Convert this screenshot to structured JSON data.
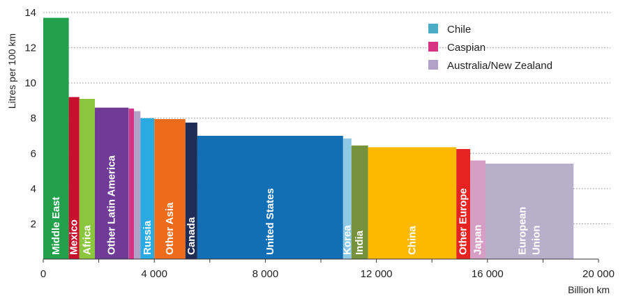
{
  "chart_data": {
    "type": "bar",
    "variable_width": true,
    "ylabel": "Litres per 100 km",
    "xlabel": "Billion km",
    "xlim": [
      0,
      20000
    ],
    "ylim": [
      0,
      14
    ],
    "x_ticks": [
      "0",
      "4 000",
      "8 000",
      "12 000",
      "16 000",
      "20 000"
    ],
    "y_ticks": [
      "2",
      "4",
      "6",
      "8",
      "10",
      "12",
      "14"
    ],
    "grid": "horizontal dotted",
    "legend_position": "top-right",
    "legend": [
      {
        "label": "Chile",
        "color": "#4bacc6"
      },
      {
        "label": "Caspian",
        "color": "#d63384"
      },
      {
        "label": "Australia/New Zealand",
        "color": "#b3a2c7"
      }
    ],
    "bars": [
      {
        "label": "Middle East",
        "x_start": 0,
        "x_end": 920,
        "value": 13.7,
        "color": "#22a04b",
        "text": [
          "Middle East"
        ]
      },
      {
        "label": "Mexico",
        "x_start": 920,
        "x_end": 1300,
        "value": 9.2,
        "color": "#c8102e",
        "text": [
          "Mexico"
        ]
      },
      {
        "label": "Africa",
        "x_start": 1300,
        "x_end": 1860,
        "value": 9.1,
        "color": "#8cc63f",
        "text": [
          "Africa"
        ]
      },
      {
        "label": "Other Latin America",
        "x_start": 1860,
        "x_end": 3070,
        "value": 8.6,
        "color": "#6f3b96",
        "text": [
          "Other Latin America"
        ]
      },
      {
        "label": "Chile",
        "x_start": 3070,
        "x_end": 3080,
        "value": 8.6,
        "color": "#4bacc6",
        "text": []
      },
      {
        "label": "Caspian",
        "x_start": 3080,
        "x_end": 3270,
        "value": 8.55,
        "color": "#d63384",
        "text": []
      },
      {
        "label": "Australia/New Zealand",
        "x_start": 3270,
        "x_end": 3500,
        "value": 8.4,
        "color": "#b3a2c7",
        "text": []
      },
      {
        "label": "Russia",
        "x_start": 3500,
        "x_end": 4000,
        "value": 8.0,
        "color": "#29abe2",
        "text": [
          "Russia"
        ]
      },
      {
        "label": "Other Asia",
        "x_start": 4000,
        "x_end": 5120,
        "value": 7.95,
        "color": "#ec6b1d",
        "text": [
          "Other Asia"
        ]
      },
      {
        "label": "Canada",
        "x_start": 5120,
        "x_end": 5550,
        "value": 7.75,
        "color": "#1f2d54",
        "text": [
          "Canada"
        ]
      },
      {
        "label": "United States",
        "x_start": 5550,
        "x_end": 10800,
        "value": 7.0,
        "color": "#126fb6",
        "text": [
          "United States"
        ]
      },
      {
        "label": "Korea",
        "x_start": 10800,
        "x_end": 11100,
        "value": 6.85,
        "color": "#8ecae6",
        "text": [
          "Korea"
        ]
      },
      {
        "label": "India",
        "x_start": 11100,
        "x_end": 11700,
        "value": 6.45,
        "color": "#76923c",
        "text": [
          "India"
        ]
      },
      {
        "label": "China",
        "x_start": 11700,
        "x_end": 14880,
        "value": 6.35,
        "color": "#fbb900",
        "text": [
          "China"
        ]
      },
      {
        "label": "Other Europe",
        "x_start": 14880,
        "x_end": 15380,
        "value": 6.25,
        "color": "#e52421",
        "text": [
          "Other Europe"
        ]
      },
      {
        "label": "Japan",
        "x_start": 15380,
        "x_end": 15930,
        "value": 5.6,
        "color": "#d69ec4",
        "text": [
          "Japan"
        ]
      },
      {
        "label": "European Union",
        "x_start": 15930,
        "x_end": 19100,
        "value": 5.42,
        "color": "#b8b0cb",
        "text": [
          "European",
          "Union"
        ]
      }
    ]
  }
}
